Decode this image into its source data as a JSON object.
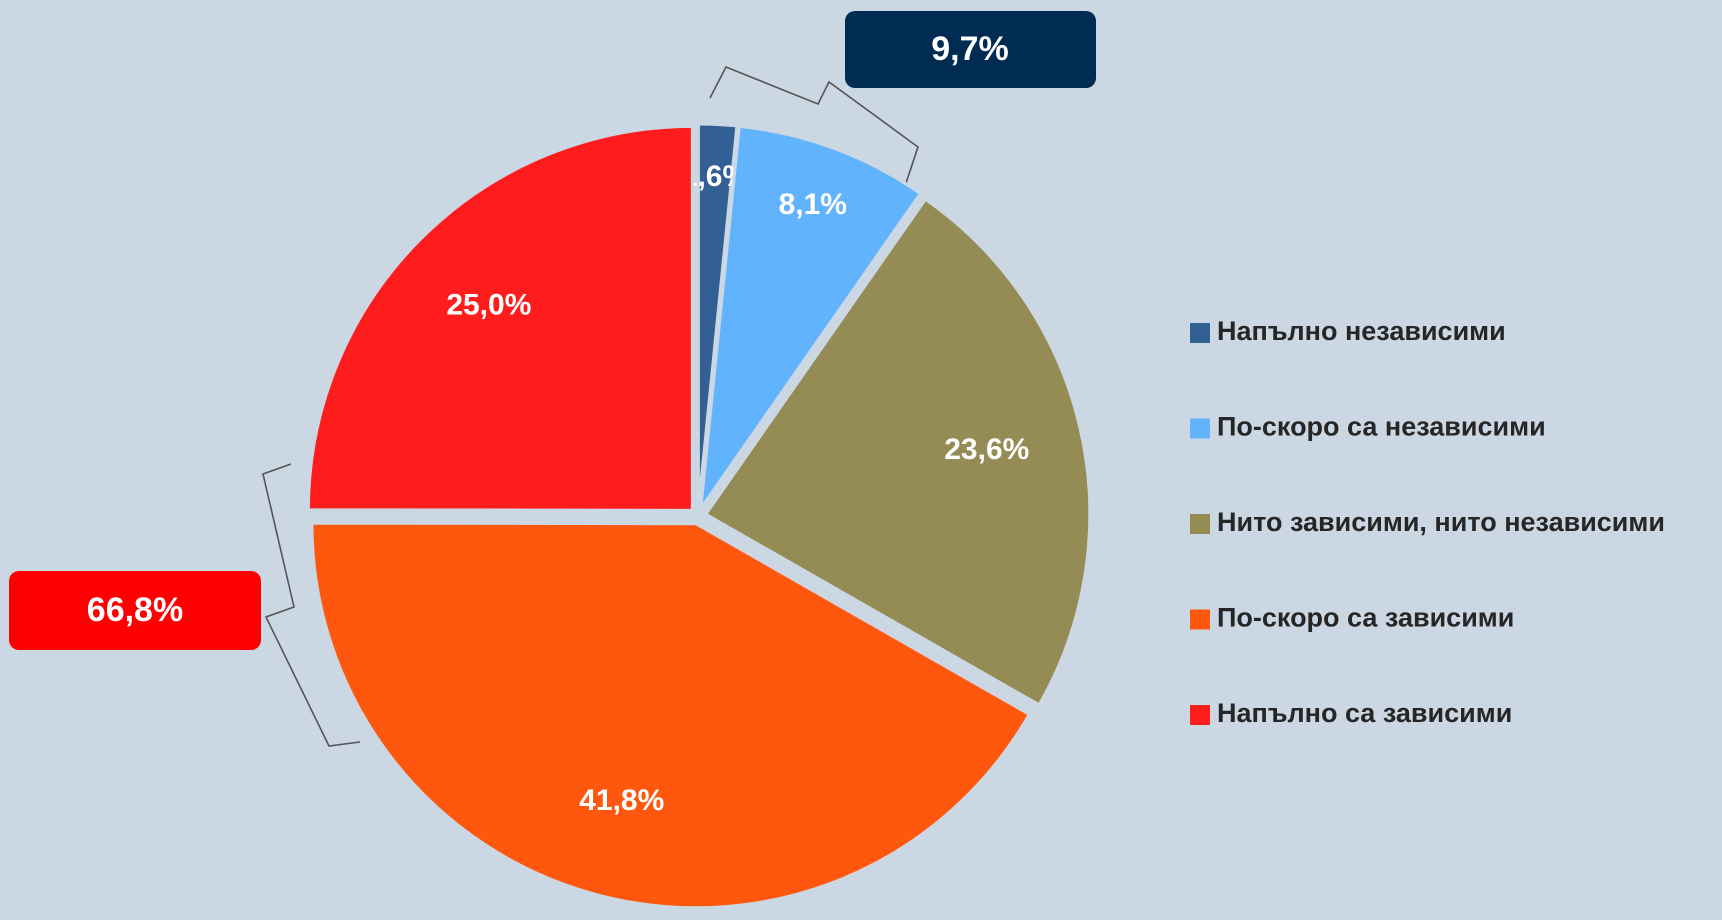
{
  "chart_data": {
    "type": "pie",
    "categories": [
      "Напълно независими",
      "По-скоро са независими",
      "Нито зависими, нито независими",
      "По-скоро са зависими",
      "Напълно са зависими"
    ],
    "values": [
      1.6,
      8.1,
      23.6,
      41.8,
      25.0
    ],
    "value_labels": [
      "1,6%",
      "8,1%",
      "23,6%",
      "41,8%",
      "25,0%"
    ],
    "colors": [
      "#325f94",
      "#62b3fe",
      "#958b55",
      "#ff570d",
      "#ff1c1c"
    ],
    "annotations": [
      {
        "label": "9,7%",
        "color": "#002b52"
      },
      {
        "label": "66,8%",
        "color": "#ff0000"
      }
    ],
    "legend": "right"
  }
}
